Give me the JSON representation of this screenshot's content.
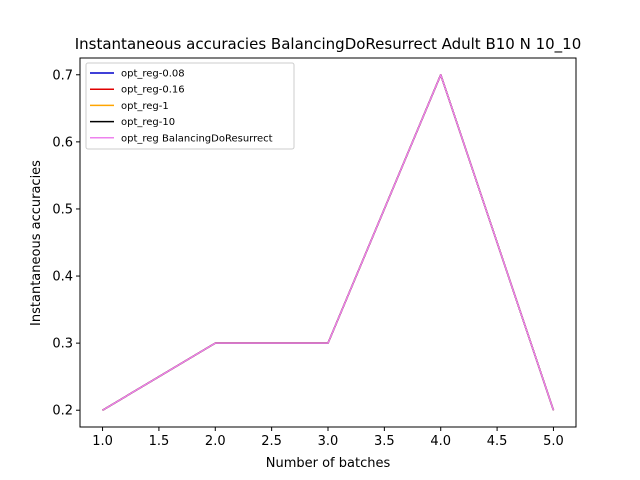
{
  "chart_data": {
    "type": "line",
    "title": "Instantaneous accuracies BalancingDoResurrect Adult B10 N 10_10",
    "xlabel": "Number of batches",
    "ylabel": "Instantaneous accuracies",
    "xlim": [
      0.8,
      5.2
    ],
    "ylim": [
      0.175,
      0.725
    ],
    "xticks": [
      1.0,
      1.5,
      2.0,
      2.5,
      3.0,
      3.5,
      4.0,
      4.5,
      5.0
    ],
    "xtick_labels": [
      "1.0",
      "1.5",
      "2.0",
      "2.5",
      "3.0",
      "3.5",
      "4.0",
      "4.5",
      "5.0"
    ],
    "yticks": [
      0.2,
      0.3,
      0.4,
      0.5,
      0.6,
      0.7
    ],
    "ytick_labels": [
      "0.2",
      "0.3",
      "0.4",
      "0.5",
      "0.6",
      "0.7"
    ],
    "grid": false,
    "legend_position": "top-left",
    "x": [
      1,
      2,
      3,
      4,
      5
    ],
    "series": [
      {
        "name": "opt_reg-0.08",
        "color": "#0000cc",
        "values": [
          0.2,
          0.3,
          0.3,
          0.7,
          0.2
        ]
      },
      {
        "name": "opt_reg-0.16",
        "color": "#e00000",
        "values": [
          0.2,
          0.3,
          0.3,
          0.7,
          0.2
        ]
      },
      {
        "name": "opt_reg-1",
        "color": "#ffa500",
        "values": [
          0.2,
          0.3,
          0.3,
          0.7,
          0.2
        ]
      },
      {
        "name": "opt_reg-10",
        "color": "#000000",
        "values": [
          0.2,
          0.3,
          0.3,
          0.7,
          0.2
        ]
      },
      {
        "name": "opt_reg BalancingDoResurrect",
        "color": "#ee82ee",
        "values": [
          0.2,
          0.3,
          0.3,
          0.7,
          0.2
        ]
      }
    ]
  }
}
